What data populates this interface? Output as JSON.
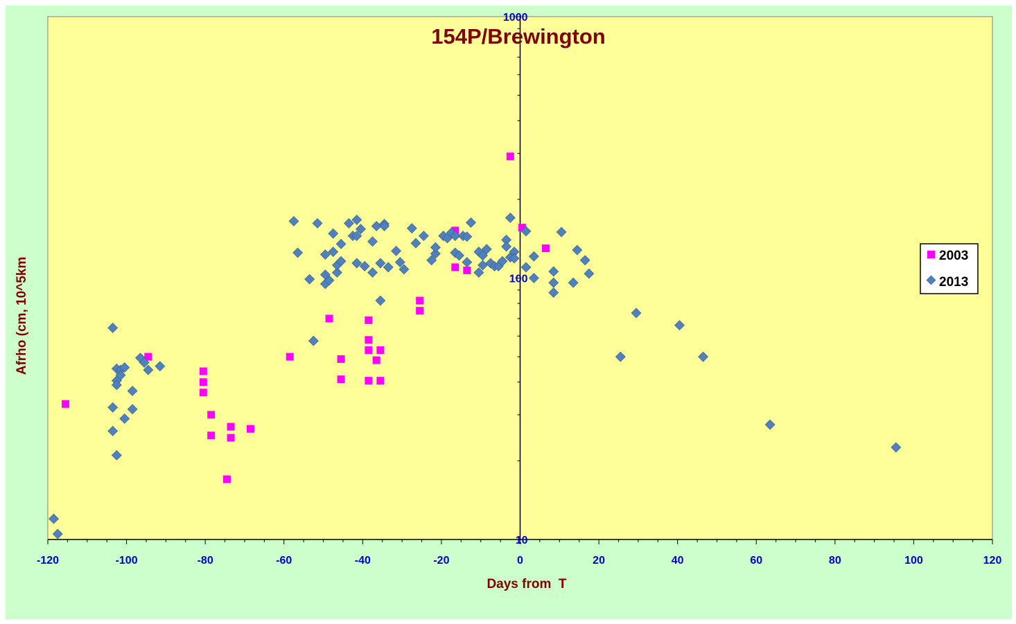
{
  "chart_data": {
    "type": "scatter",
    "title": "154P/Brewington",
    "xlabel": "Days from  T",
    "ylabel": "Afrho (cm, 10^5km",
    "xlim": [
      -120,
      120
    ],
    "ylim": [
      10,
      1000
    ],
    "yscale": "log",
    "x_ticks": [
      -120,
      -100,
      -80,
      -60,
      -40,
      -20,
      0,
      20,
      40,
      60,
      80,
      100,
      120
    ],
    "y_ticks": [
      10,
      100,
      1000
    ],
    "legend_position": "right",
    "grid": false,
    "series": [
      {
        "name": "2003",
        "color": "#ff00ff",
        "marker": "square",
        "points": [
          [
            -115.5,
            33
          ],
          [
            -94.5,
            50
          ],
          [
            -80.5,
            44
          ],
          [
            -80.5,
            40
          ],
          [
            -80.5,
            36.5
          ],
          [
            -78.5,
            30
          ],
          [
            -78.5,
            25
          ],
          [
            -74.5,
            17
          ],
          [
            -73.5,
            27
          ],
          [
            -73.5,
            24.5
          ],
          [
            -68.5,
            26.5
          ],
          [
            -58.5,
            50
          ],
          [
            -48.5,
            70
          ],
          [
            -45.5,
            49
          ],
          [
            -45.5,
            41
          ],
          [
            -38.5,
            69
          ],
          [
            -38.5,
            58
          ],
          [
            -38.5,
            53
          ],
          [
            -38.5,
            40.5
          ],
          [
            -36.5,
            48.5
          ],
          [
            -35.5,
            53
          ],
          [
            -35.5,
            40.5
          ],
          [
            -25.5,
            82
          ],
          [
            -25.5,
            75
          ],
          [
            -16.5,
            152
          ],
          [
            -16.5,
            110
          ],
          [
            -13.5,
            107
          ],
          [
            -2.5,
            292
          ],
          [
            0.5,
            156
          ],
          [
            6.5,
            130
          ]
        ]
      },
      {
        "name": "2013",
        "color": "#4f81bd",
        "marker": "diamond",
        "points": [
          [
            -118.5,
            12
          ],
          [
            -117.5,
            10.5
          ],
          [
            -103.5,
            64.5
          ],
          [
            -103.5,
            32
          ],
          [
            -103.5,
            26
          ],
          [
            -102.5,
            45
          ],
          [
            -102.5,
            40.5
          ],
          [
            -102.5,
            39
          ],
          [
            -102.5,
            21
          ],
          [
            -101.5,
            44.5
          ],
          [
            -101.5,
            42.5
          ],
          [
            -100.5,
            45.5
          ],
          [
            -100.5,
            29
          ],
          [
            -98.5,
            37
          ],
          [
            -98.5,
            31.5
          ],
          [
            -96.5,
            49.5
          ],
          [
            -95.5,
            47.5
          ],
          [
            -94.5,
            44.5
          ],
          [
            -91.5,
            46
          ],
          [
            -57.5,
            165
          ],
          [
            -56.5,
            125
          ],
          [
            -53.5,
            99
          ],
          [
            -52.5,
            57.5
          ],
          [
            -51.5,
            162
          ],
          [
            -49.5,
            95
          ],
          [
            -49.5,
            103
          ],
          [
            -49.5,
            123
          ],
          [
            -48.5,
            98
          ],
          [
            -47.5,
            148
          ],
          [
            -47.5,
            126
          ],
          [
            -46.5,
            105
          ],
          [
            -46.5,
            112
          ],
          [
            -45.5,
            116
          ],
          [
            -45.5,
            135
          ],
          [
            -43.5,
            162
          ],
          [
            -42.5,
            145
          ],
          [
            -41.5,
            167
          ],
          [
            -41.5,
            145
          ],
          [
            -41.5,
            114
          ],
          [
            -40.5,
            154
          ],
          [
            -39.5,
            111
          ],
          [
            -37.5,
            105
          ],
          [
            -37.5,
            138
          ],
          [
            -36.5,
            158
          ],
          [
            -35.5,
            114
          ],
          [
            -35.5,
            82
          ],
          [
            -34.5,
            161
          ],
          [
            -34.5,
            158
          ],
          [
            -33.5,
            110
          ],
          [
            -31.5,
            127
          ],
          [
            -30.5,
            115
          ],
          [
            -29.5,
            108
          ],
          [
            -27.5,
            155
          ],
          [
            -26.5,
            136
          ],
          [
            -24.5,
            145
          ],
          [
            -22.5,
            117
          ],
          [
            -21.5,
            124
          ],
          [
            -21.5,
            131
          ],
          [
            -19.5,
            145
          ],
          [
            -18.5,
            142
          ],
          [
            -17.5,
            149
          ],
          [
            -16.5,
            145
          ],
          [
            -16.5,
            125
          ],
          [
            -15.5,
            122
          ],
          [
            -14.5,
            145
          ],
          [
            -13.5,
            115
          ],
          [
            -13.5,
            144
          ],
          [
            -12.5,
            163
          ],
          [
            -10.5,
            105
          ],
          [
            -10.5,
            126
          ],
          [
            -9.5,
            112
          ],
          [
            -9.5,
            122
          ],
          [
            -8.5,
            129
          ],
          [
            -7.5,
            114
          ],
          [
            -6.5,
            111
          ],
          [
            -5.5,
            111
          ],
          [
            -4.5,
            116
          ],
          [
            -3.5,
            140
          ],
          [
            -3.5,
            132
          ],
          [
            -2.5,
            170
          ],
          [
            -2.5,
            120
          ],
          [
            -1.5,
            126
          ],
          [
            -1.5,
            119
          ],
          [
            1.5,
            110
          ],
          [
            1.5,
            151
          ],
          [
            3.5,
            100
          ],
          [
            3.5,
            121
          ],
          [
            8.5,
            106
          ],
          [
            8.5,
            96
          ],
          [
            8.5,
            88
          ],
          [
            10.5,
            150
          ],
          [
            13.5,
            96
          ],
          [
            14.5,
            128
          ],
          [
            16.5,
            117
          ],
          [
            17.5,
            104
          ],
          [
            25.5,
            50
          ],
          [
            29.5,
            73.5
          ],
          [
            40.5,
            66
          ],
          [
            46.5,
            50
          ],
          [
            63.5,
            27.5
          ],
          [
            95.5,
            22.5
          ]
        ]
      }
    ]
  }
}
